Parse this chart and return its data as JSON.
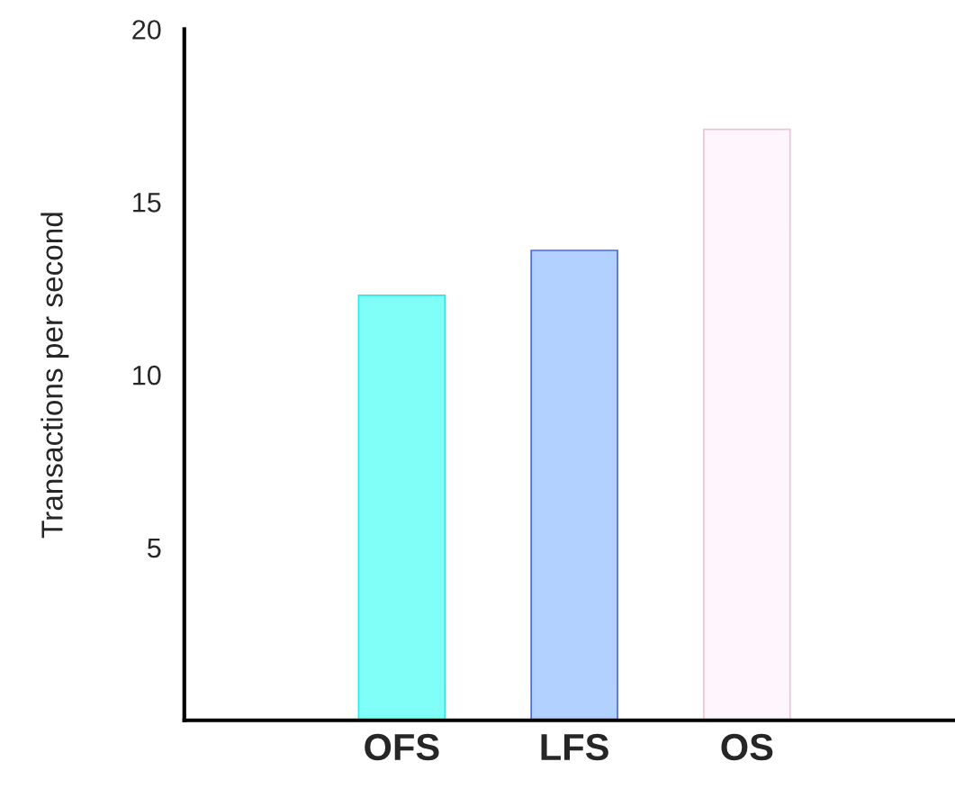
{
  "chart_data": {
    "type": "bar",
    "ylabel": "Transactions per second",
    "categories": [
      "OFS",
      "LFS",
      "OS"
    ],
    "values": [
      12.3,
      13.6,
      17.1
    ],
    "colors": [
      "#80fff8",
      "#b3d1ff",
      "#fff5fc"
    ],
    "ylim": [
      0,
      20
    ],
    "yticks": [
      5,
      10,
      15,
      20
    ],
    "grid": false,
    "legend": false
  }
}
